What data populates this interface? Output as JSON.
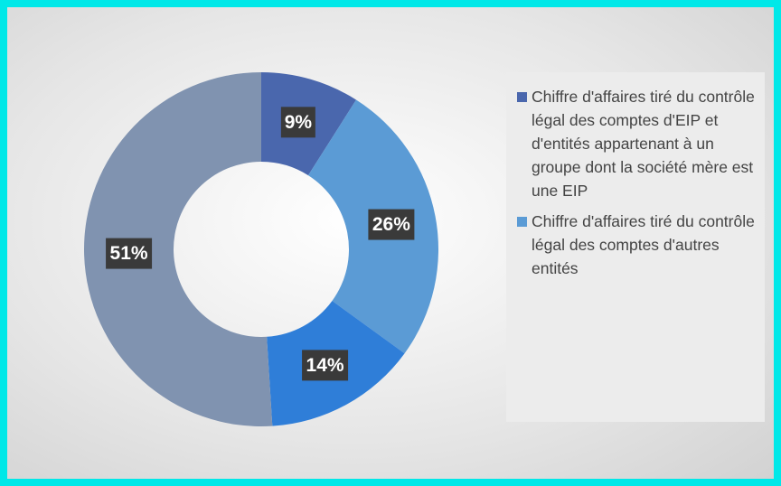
{
  "chart_data": {
    "type": "donut",
    "categories": [
      "Chiffre d'affaires tiré du contrôle légal des comptes d'EIP et d'entités appartenant à un groupe dont la société mère est une EIP",
      "Chiffre d'affaires tiré du contrôle légal des comptes d'autres entités",
      null,
      null
    ],
    "values": [
      9,
      26,
      14,
      51
    ],
    "value_labels": [
      "9%",
      "26%",
      "14%",
      "51%"
    ],
    "colors": [
      "#4a67ad",
      "#5b9bd5",
      "#2f7ed8",
      "#8093b0"
    ]
  }
}
